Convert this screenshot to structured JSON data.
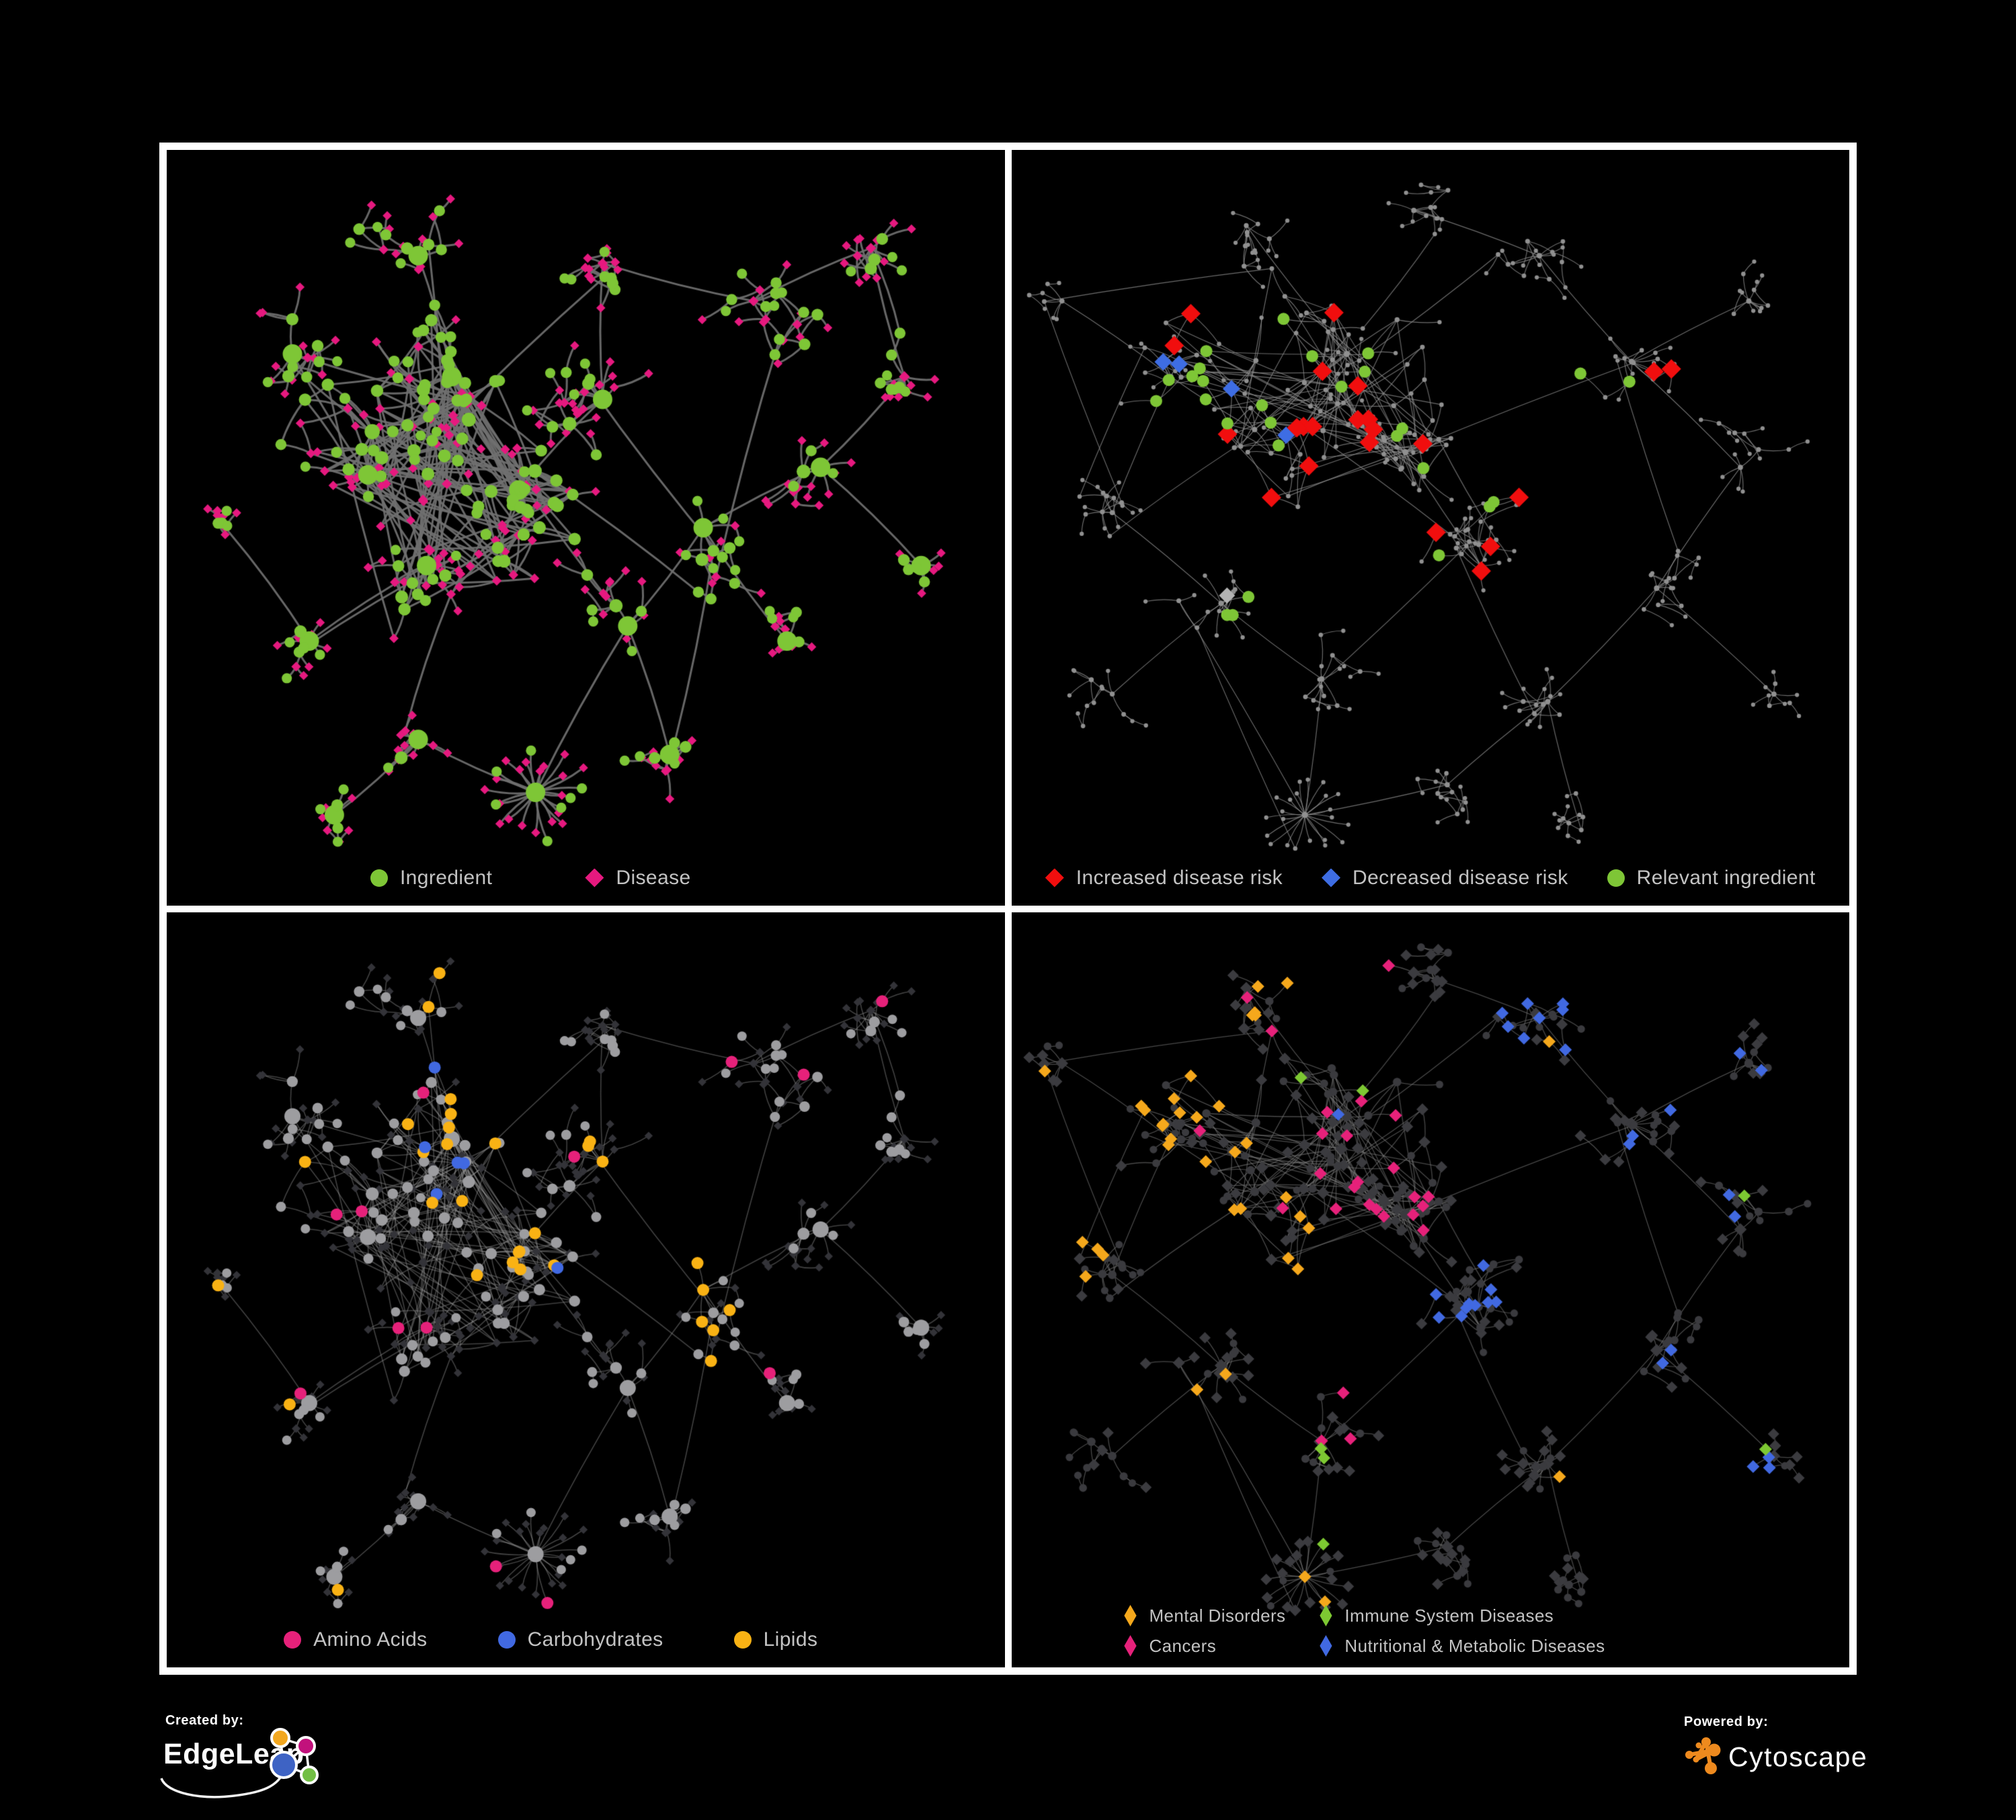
{
  "branding": {
    "created_by_label": "Created by:",
    "created_by_name": "EdgeLeap",
    "powered_by_label": "Powered by:",
    "powered_by_name": "Cytoscape"
  },
  "colors": {
    "background": "#000000",
    "frame": "#ffffff",
    "legend_text": "#c3c3c3",
    "ingredient_green": "#7ec636",
    "disease_pink": "#e6197f",
    "increased_risk_red": "#f10e0e",
    "decreased_risk_blue": "#3e6de3",
    "neutral_gray": "#b3b3b3",
    "amino_pink": "#e6217a",
    "carb_blue": "#4169e1",
    "lipid_yellow": "#f9b214",
    "mental_orange": "#f5a81c",
    "immune_green": "#7dc832",
    "cancer_pink": "#e6217a",
    "nutritional_blue": "#4169e1",
    "cytoscape_orange": "#ee8a1e"
  },
  "panels": [
    {
      "id": "ingredient-disease-network",
      "legend": [
        {
          "label": "Ingredient",
          "color": "#7ec636",
          "shape": "circle"
        },
        {
          "label": "Disease",
          "color": "#e6197f",
          "shape": "diamond"
        }
      ]
    },
    {
      "id": "disease-risk-network",
      "legend": [
        {
          "label": "Increased disease risk",
          "color": "#f10e0e",
          "shape": "diamond"
        },
        {
          "label": "Decreased disease risk",
          "color": "#3e6de3",
          "shape": "diamond"
        },
        {
          "label": "Relevant ingredient",
          "color": "#7ec636",
          "shape": "circle"
        }
      ]
    },
    {
      "id": "nutrient-class-network",
      "legend": [
        {
          "label": "Amino Acids",
          "color": "#e6217a",
          "shape": "circle"
        },
        {
          "label": "Carbohydrates",
          "color": "#4169e1",
          "shape": "circle"
        },
        {
          "label": "Lipids",
          "color": "#f9b214",
          "shape": "circle"
        }
      ]
    },
    {
      "id": "disease-category-network",
      "legend": [
        {
          "label": "Mental Disorders",
          "color": "#f5a81c",
          "shape": "narrow-diamond"
        },
        {
          "label": "Immune System Diseases",
          "color": "#7dc832",
          "shape": "narrow-diamond"
        },
        {
          "label": "Cancers",
          "color": "#e6217a",
          "shape": "narrow-diamond"
        },
        {
          "label": "Nutritional & Metabolic Diseases",
          "color": "#4169e1",
          "shape": "narrow-diamond"
        }
      ]
    }
  ],
  "networks": {
    "a": {
      "seed": 1337,
      "pDiamond": 0.42,
      "pLeafDiamond": 0.75,
      "dense": [
        0,
        1,
        2,
        4
      ],
      "intra": 110,
      "extra": 16,
      "clusters": [
        [
          0.34,
          0.3,
          55,
          95,
          0
        ],
        [
          0.24,
          0.43,
          50,
          90,
          0
        ],
        [
          0.42,
          0.45,
          46,
          85,
          0
        ],
        [
          0.52,
          0.33,
          32,
          75,
          0
        ],
        [
          0.31,
          0.55,
          30,
          70,
          0
        ],
        [
          0.15,
          0.27,
          20,
          65,
          0
        ],
        [
          0.3,
          0.14,
          22,
          65,
          0
        ],
        [
          0.52,
          0.15,
          18,
          60,
          0
        ],
        [
          0.7,
          0.2,
          26,
          70,
          0
        ],
        [
          0.84,
          0.13,
          18,
          60,
          0
        ],
        [
          0.88,
          0.3,
          16,
          55,
          0
        ],
        [
          0.78,
          0.42,
          18,
          60,
          0
        ],
        [
          0.64,
          0.5,
          20,
          60,
          0
        ],
        [
          0.55,
          0.63,
          18,
          58,
          0
        ],
        [
          0.44,
          0.85,
          26,
          62,
          1
        ],
        [
          0.6,
          0.8,
          16,
          55,
          0
        ],
        [
          0.74,
          0.65,
          14,
          55,
          0
        ],
        [
          0.3,
          0.78,
          14,
          52,
          0
        ],
        [
          0.17,
          0.65,
          14,
          52,
          0
        ],
        [
          0.2,
          0.88,
          12,
          48,
          0
        ],
        [
          0.07,
          0.5,
          10,
          45,
          0
        ],
        [
          0.9,
          0.55,
          10,
          45,
          0
        ]
      ]
    },
    "b": {
      "seed": 4242,
      "pDiamond": 0.6,
      "pLeafDiamond": 0.66,
      "dense": [
        0,
        1,
        2
      ],
      "intra": 70,
      "extra": 18,
      "clusters": [
        [
          0.4,
          0.27,
          58,
          95,
          0
        ],
        [
          0.29,
          0.37,
          40,
          85,
          0
        ],
        [
          0.47,
          0.4,
          38,
          80,
          0
        ],
        [
          0.56,
          0.55,
          34,
          75,
          0
        ],
        [
          0.19,
          0.3,
          26,
          70,
          0
        ],
        [
          0.12,
          0.48,
          18,
          60,
          0
        ],
        [
          0.25,
          0.6,
          20,
          60,
          0
        ],
        [
          0.37,
          0.7,
          18,
          58,
          0
        ],
        [
          0.35,
          0.88,
          22,
          55,
          1
        ],
        [
          0.52,
          0.84,
          16,
          55,
          0
        ],
        [
          0.64,
          0.73,
          18,
          58,
          0
        ],
        [
          0.77,
          0.58,
          18,
          58,
          0
        ],
        [
          0.87,
          0.42,
          16,
          55,
          0
        ],
        [
          0.74,
          0.28,
          20,
          62,
          0
        ],
        [
          0.63,
          0.14,
          20,
          60,
          0
        ],
        [
          0.48,
          0.08,
          16,
          55,
          0
        ],
        [
          0.28,
          0.1,
          18,
          55,
          0
        ],
        [
          0.12,
          0.72,
          14,
          50,
          0
        ],
        [
          0.88,
          0.2,
          12,
          50,
          0
        ],
        [
          0.68,
          0.9,
          12,
          46,
          0
        ],
        [
          0.91,
          0.72,
          10,
          45,
          0
        ],
        [
          0.06,
          0.2,
          8,
          42,
          0
        ]
      ]
    }
  },
  "panel_styles": [
    {
      "network": "a",
      "seed": 11,
      "edge": {
        "color": "rgba(112,112,112,0.92)",
        "width": 3.0,
        "curve": 10
      },
      "circle": {
        "color": "#7ec636",
        "rBase": 6.0,
        "rDeg": 1.6,
        "rMax": 13.5,
        "rootR": 14.5
      },
      "diamond": {
        "color": "#e6197f",
        "sBase": 6.3,
        "sDeg": 0.5,
        "sMax": 9.0
      },
      "highlights": []
    },
    {
      "network": "b",
      "seed": 22,
      "edge": {
        "color": "rgba(140,140,140,0.78)",
        "width": 1.15,
        "curve": 6
      },
      "dotMode": true,
      "circle": {
        "color": "#909090",
        "rBase": 2.7,
        "rDeg": 0.45,
        "rMax": 4.6
      },
      "diamond": {
        "color": "#909090",
        "sBase": 2.7,
        "sDeg": 0.45,
        "sMax": 4.6
      },
      "highlights": [
        {
          "color": "#f10e0e",
          "shape": "diamond",
          "size": 14.5,
          "clusters": [
            0,
            1,
            2,
            3,
            13,
            10
          ],
          "prob": 0.1
        },
        {
          "color": "#3e6de3",
          "shape": "diamond",
          "size": 13.0,
          "clusters": [
            1,
            4,
            18
          ],
          "prob": 0.06
        },
        {
          "color": "#b3b3b3",
          "shape": "diamond",
          "size": 12.0,
          "clusters": [
            0,
            2,
            3,
            6
          ],
          "prob": 0.032
        },
        {
          "color": "#7ec636",
          "shape": "circle",
          "size": 9.0,
          "clusters": [
            0,
            1,
            2,
            3,
            6,
            13,
            4
          ],
          "prob": 0.11
        }
      ]
    },
    {
      "network": "a",
      "seed": 33,
      "edge": {
        "color": "rgba(155,155,155,0.42)",
        "width": 1.6,
        "curve": 8
      },
      "circle": {
        "color": "#9d9da0",
        "rBase": 5.8,
        "rDeg": 1.2,
        "rMax": 11.5,
        "rootR": 12
      },
      "diamond": {
        "color": "#333338",
        "sBase": 5.8,
        "sDeg": 0.4,
        "sMax": 8.0
      },
      "highlights": [
        {
          "color": "#f9b214",
          "shape": "circle",
          "onlyType": "circle",
          "clusters": [
            0,
            3,
            2,
            6,
            12
          ],
          "prob": 0.36
        },
        {
          "color": "#f9b214",
          "shape": "circle",
          "onlyType": "circle",
          "clusters": null,
          "prob": 0.05
        },
        {
          "color": "#4169e1",
          "shape": "circle",
          "onlyType": "circle",
          "clusters": [
            0,
            2
          ],
          "prob": 0.17
        },
        {
          "color": "#4169e1",
          "shape": "circle",
          "onlyType": "circle",
          "clusters": null,
          "prob": 0.013
        },
        {
          "color": "#e6217a",
          "shape": "circle",
          "onlyType": "circle",
          "clusters": null,
          "prob": 0.06
        }
      ]
    },
    {
      "network": "b",
      "seed": 44,
      "edge": {
        "color": "rgba(120,120,120,0.6)",
        "width": 1.3,
        "curve": 7
      },
      "circle": {
        "color": "#3a3a3e",
        "rBase": 5.0,
        "rDeg": 0.6,
        "rMax": 8.0
      },
      "diamond": {
        "color": "#3b3b3f",
        "sBase": 8.0,
        "sDeg": 0.5,
        "sMax": 10.5
      },
      "highlights": [
        {
          "color": "#f5a81c",
          "shape": "diamond",
          "onlyType": "diamond",
          "clusters": [
            4,
            1,
            5,
            16
          ],
          "prob": 0.55,
          "size": 9.5
        },
        {
          "color": "#f5a81c",
          "shape": "diamond",
          "onlyType": "diamond",
          "clusters": null,
          "prob": 0.03,
          "size": 9.5
        },
        {
          "color": "#e6217a",
          "shape": "diamond",
          "onlyType": "diamond",
          "clusters": [
            0,
            2,
            7
          ],
          "prob": 0.32,
          "size": 9.5
        },
        {
          "color": "#e6217a",
          "shape": "diamond",
          "onlyType": "diamond",
          "clusters": null,
          "prob": 0.015,
          "size": 9.5
        },
        {
          "color": "#4169e1",
          "shape": "diamond",
          "onlyType": "diamond",
          "clusters": [
            13,
            11,
            12,
            14,
            3,
            18,
            20
          ],
          "prob": 0.32,
          "size": 9.5
        },
        {
          "color": "#4169e1",
          "shape": "diamond",
          "onlyType": "diamond",
          "clusters": null,
          "prob": 0.02,
          "size": 9.5
        },
        {
          "color": "#7dc832",
          "shape": "diamond",
          "onlyType": "diamond",
          "clusters": null,
          "prob": 0.02,
          "size": 9.5
        }
      ]
    }
  ]
}
